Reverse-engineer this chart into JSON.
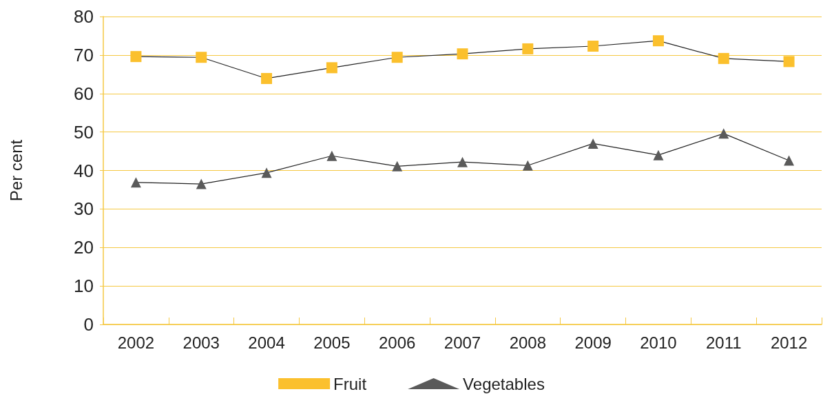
{
  "chart_data": {
    "type": "line",
    "ylabel": "Per cent",
    "categories": [
      "2002",
      "2003",
      "2004",
      "2005",
      "2006",
      "2007",
      "2008",
      "2009",
      "2010",
      "2011",
      "2012"
    ],
    "series": [
      {
        "name": "Fruit",
        "color": "#fbc02d",
        "marker": "square",
        "values": [
          69.6,
          69.4,
          63.9,
          66.7,
          69.4,
          70.3,
          71.6,
          72.3,
          73.7,
          69.1,
          68.3
        ]
      },
      {
        "name": "Vegetables",
        "color": "#5a5a5a",
        "marker": "triangle",
        "values": [
          36.9,
          36.5,
          39.4,
          43.8,
          41.1,
          42.2,
          41.3,
          47.0,
          44.0,
          49.6,
          42.6
        ]
      }
    ],
    "ylim": [
      0,
      80
    ],
    "yticks": [
      0,
      10,
      20,
      30,
      40,
      50,
      60,
      70,
      80
    ],
    "grid": "y",
    "legend": "bottom"
  }
}
